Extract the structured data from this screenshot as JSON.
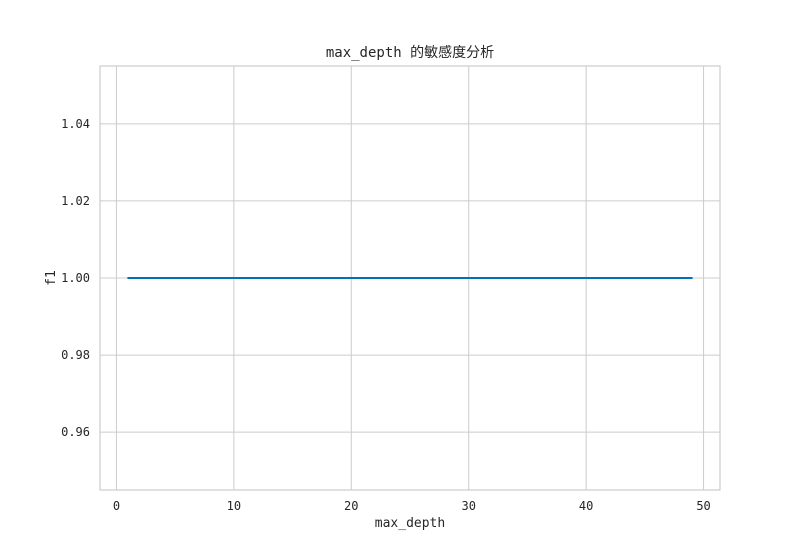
{
  "chart_data": {
    "type": "line",
    "title": "max_depth 的敏感度分析",
    "xlabel": "max_depth",
    "ylabel": "f1",
    "xlim": [
      -1.4,
      51.4
    ],
    "ylim": [
      0.945,
      1.055
    ],
    "xticks": [
      0,
      10,
      20,
      30,
      40,
      50
    ],
    "yticks": [
      0.96,
      0.98,
      1.0,
      1.02,
      1.04
    ],
    "ytick_labels": [
      "0.96",
      "0.98",
      "1.00",
      "1.02",
      "1.04"
    ],
    "grid": true,
    "series": [
      {
        "color": "#0072b2",
        "x": [
          1,
          49
        ],
        "y": [
          1.0,
          1.0
        ]
      }
    ]
  }
}
